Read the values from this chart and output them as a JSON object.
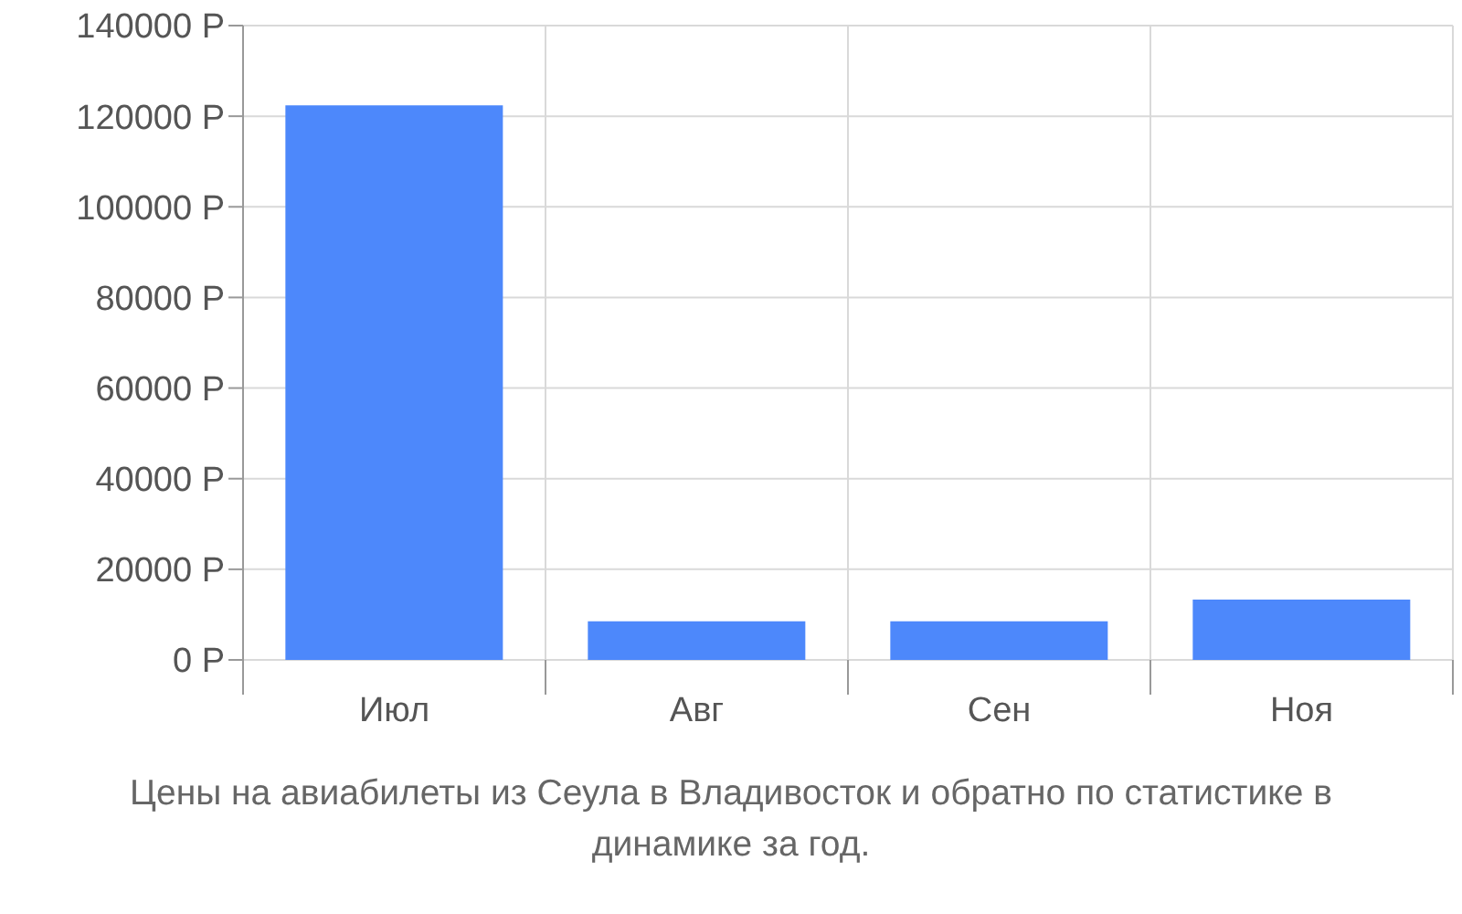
{
  "chart_data": {
    "type": "bar",
    "title": "Цены на авиабилеты из Сеула в Владивосток и обратно по статистике в динамике за год.",
    "categories": [
      "Июл",
      "Авг",
      "Сен",
      "Ноя"
    ],
    "values": [
      122400,
      8500,
      8500,
      13300
    ],
    "color": "#4d88fb",
    "ylim": [
      0,
      140000
    ],
    "yticks": [
      {
        "value": 0,
        "label": "0 Р"
      },
      {
        "value": 20000,
        "label": "20000 Р"
      },
      {
        "value": 40000,
        "label": "40000 Р"
      },
      {
        "value": 60000,
        "label": "60000 Р"
      },
      {
        "value": 80000,
        "label": "80000 Р"
      },
      {
        "value": 100000,
        "label": "100000 Р"
      },
      {
        "value": 120000,
        "label": "120000 Р"
      },
      {
        "value": 140000,
        "label": "140000 Р"
      }
    ],
    "grid": true
  }
}
